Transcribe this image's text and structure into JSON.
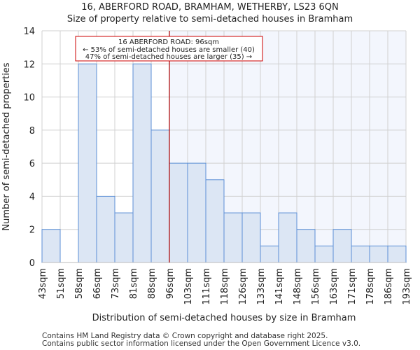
{
  "chart_data": {
    "type": "bar",
    "title": "16, ABERFORD ROAD, BRAMHAM, WETHERBY, LS23 6QN",
    "subtitle": "Size of property relative to semi-detached houses in Bramham",
    "xlabel": "Distribution of semi-detached houses by size in Bramham",
    "ylabel": "Number of semi-detached properties",
    "bin_edges": [
      "43sqm",
      "51sqm",
      "58sqm",
      "66sqm",
      "73sqm",
      "81sqm",
      "88sqm",
      "96sqm",
      "103sqm",
      "111sqm",
      "118sqm",
      "126sqm",
      "133sqm",
      "141sqm",
      "148sqm",
      "156sqm",
      "163sqm",
      "171sqm",
      "178sqm",
      "186sqm",
      "193sqm"
    ],
    "values": [
      2,
      0,
      12,
      4,
      3,
      12,
      8,
      6,
      6,
      5,
      3,
      3,
      1,
      3,
      2,
      1,
      2,
      1,
      1,
      1
    ],
    "ylim": [
      0,
      14
    ],
    "yticks": [
      0,
      2,
      4,
      6,
      8,
      10,
      12,
      14
    ],
    "grid": true,
    "marker_index": 7,
    "annotation": {
      "line1": "16 ABERFORD ROAD: 96sqm",
      "line2": "← 53% of semi-detached houses are smaller (40)",
      "line3": "47% of semi-detached houses are larger (35) →"
    },
    "colors": {
      "bar_fill": "#dce6f4",
      "bar_edge": "#5b8fd6",
      "marker": "#aa0000",
      "highlight_bg": "#f3f6fd",
      "grid": "#d0d0d0"
    }
  },
  "footer": {
    "line1": "Contains HM Land Registry data © Crown copyright and database right 2025.",
    "line2": "Contains public sector information licensed under the Open Government Licence v3.0."
  }
}
